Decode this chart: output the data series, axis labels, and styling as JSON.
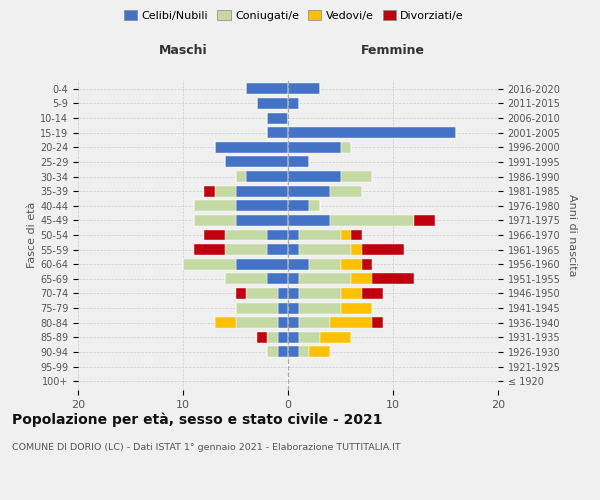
{
  "age_groups": [
    "100+",
    "95-99",
    "90-94",
    "85-89",
    "80-84",
    "75-79",
    "70-74",
    "65-69",
    "60-64",
    "55-59",
    "50-54",
    "45-49",
    "40-44",
    "35-39",
    "30-34",
    "25-29",
    "20-24",
    "15-19",
    "10-14",
    "5-9",
    "0-4"
  ],
  "birth_years": [
    "≤ 1920",
    "1921-1925",
    "1926-1930",
    "1931-1935",
    "1936-1940",
    "1941-1945",
    "1946-1950",
    "1951-1955",
    "1956-1960",
    "1961-1965",
    "1966-1970",
    "1971-1975",
    "1976-1980",
    "1981-1985",
    "1986-1990",
    "1991-1995",
    "1996-2000",
    "2001-2005",
    "2006-2010",
    "2011-2015",
    "2016-2020"
  ],
  "males": {
    "celibi": [
      0,
      0,
      1,
      1,
      1,
      1,
      1,
      2,
      5,
      2,
      2,
      5,
      5,
      5,
      4,
      6,
      7,
      2,
      2,
      3,
      4
    ],
    "coniugati": [
      0,
      0,
      1,
      1,
      4,
      4,
      3,
      4,
      5,
      4,
      4,
      4,
      4,
      2,
      1,
      0,
      0,
      0,
      0,
      0,
      0
    ],
    "vedovi": [
      0,
      0,
      0,
      0,
      2,
      0,
      0,
      0,
      0,
      0,
      0,
      0,
      0,
      0,
      0,
      0,
      0,
      0,
      0,
      0,
      0
    ],
    "divorziati": [
      0,
      0,
      0,
      1,
      0,
      0,
      1,
      0,
      0,
      3,
      2,
      0,
      0,
      1,
      0,
      0,
      0,
      0,
      0,
      0,
      0
    ]
  },
  "females": {
    "nubili": [
      0,
      0,
      1,
      1,
      1,
      1,
      1,
      1,
      2,
      1,
      1,
      4,
      2,
      4,
      5,
      2,
      5,
      16,
      0,
      1,
      3
    ],
    "coniugate": [
      0,
      0,
      1,
      2,
      3,
      4,
      4,
      5,
      3,
      5,
      4,
      8,
      1,
      3,
      3,
      0,
      1,
      0,
      0,
      0,
      0
    ],
    "vedove": [
      0,
      0,
      2,
      3,
      4,
      3,
      2,
      2,
      2,
      1,
      1,
      0,
      0,
      0,
      0,
      0,
      0,
      0,
      0,
      0,
      0
    ],
    "divorziate": [
      0,
      0,
      0,
      0,
      1,
      0,
      2,
      4,
      1,
      4,
      1,
      2,
      0,
      0,
      0,
      0,
      0,
      0,
      0,
      0,
      0
    ]
  },
  "colors": {
    "celibi": "#4472c4",
    "coniugati": "#c5d9a4",
    "vedovi": "#ffc000",
    "divorziati": "#c0000e"
  },
  "xlim": [
    -20,
    20
  ],
  "xticks": [
    -20,
    -10,
    0,
    10,
    20
  ],
  "xticklabels": [
    "20",
    "10",
    "0",
    "10",
    "20"
  ],
  "title": "Popolazione per età, sesso e stato civile - 2021",
  "subtitle": "COMUNE DI DORIO (LC) - Dati ISTAT 1° gennaio 2021 - Elaborazione TUTTITALIA.IT",
  "ylabel_left": "Fasce di età",
  "ylabel_right": "Anni di nascita",
  "header_left": "Maschi",
  "header_right": "Femmine",
  "legend_labels": [
    "Celibi/Nubili",
    "Coniugati/e",
    "Vedovi/e",
    "Divorziati/e"
  ],
  "background_color": "#f0f0f0",
  "bar_height": 0.75
}
